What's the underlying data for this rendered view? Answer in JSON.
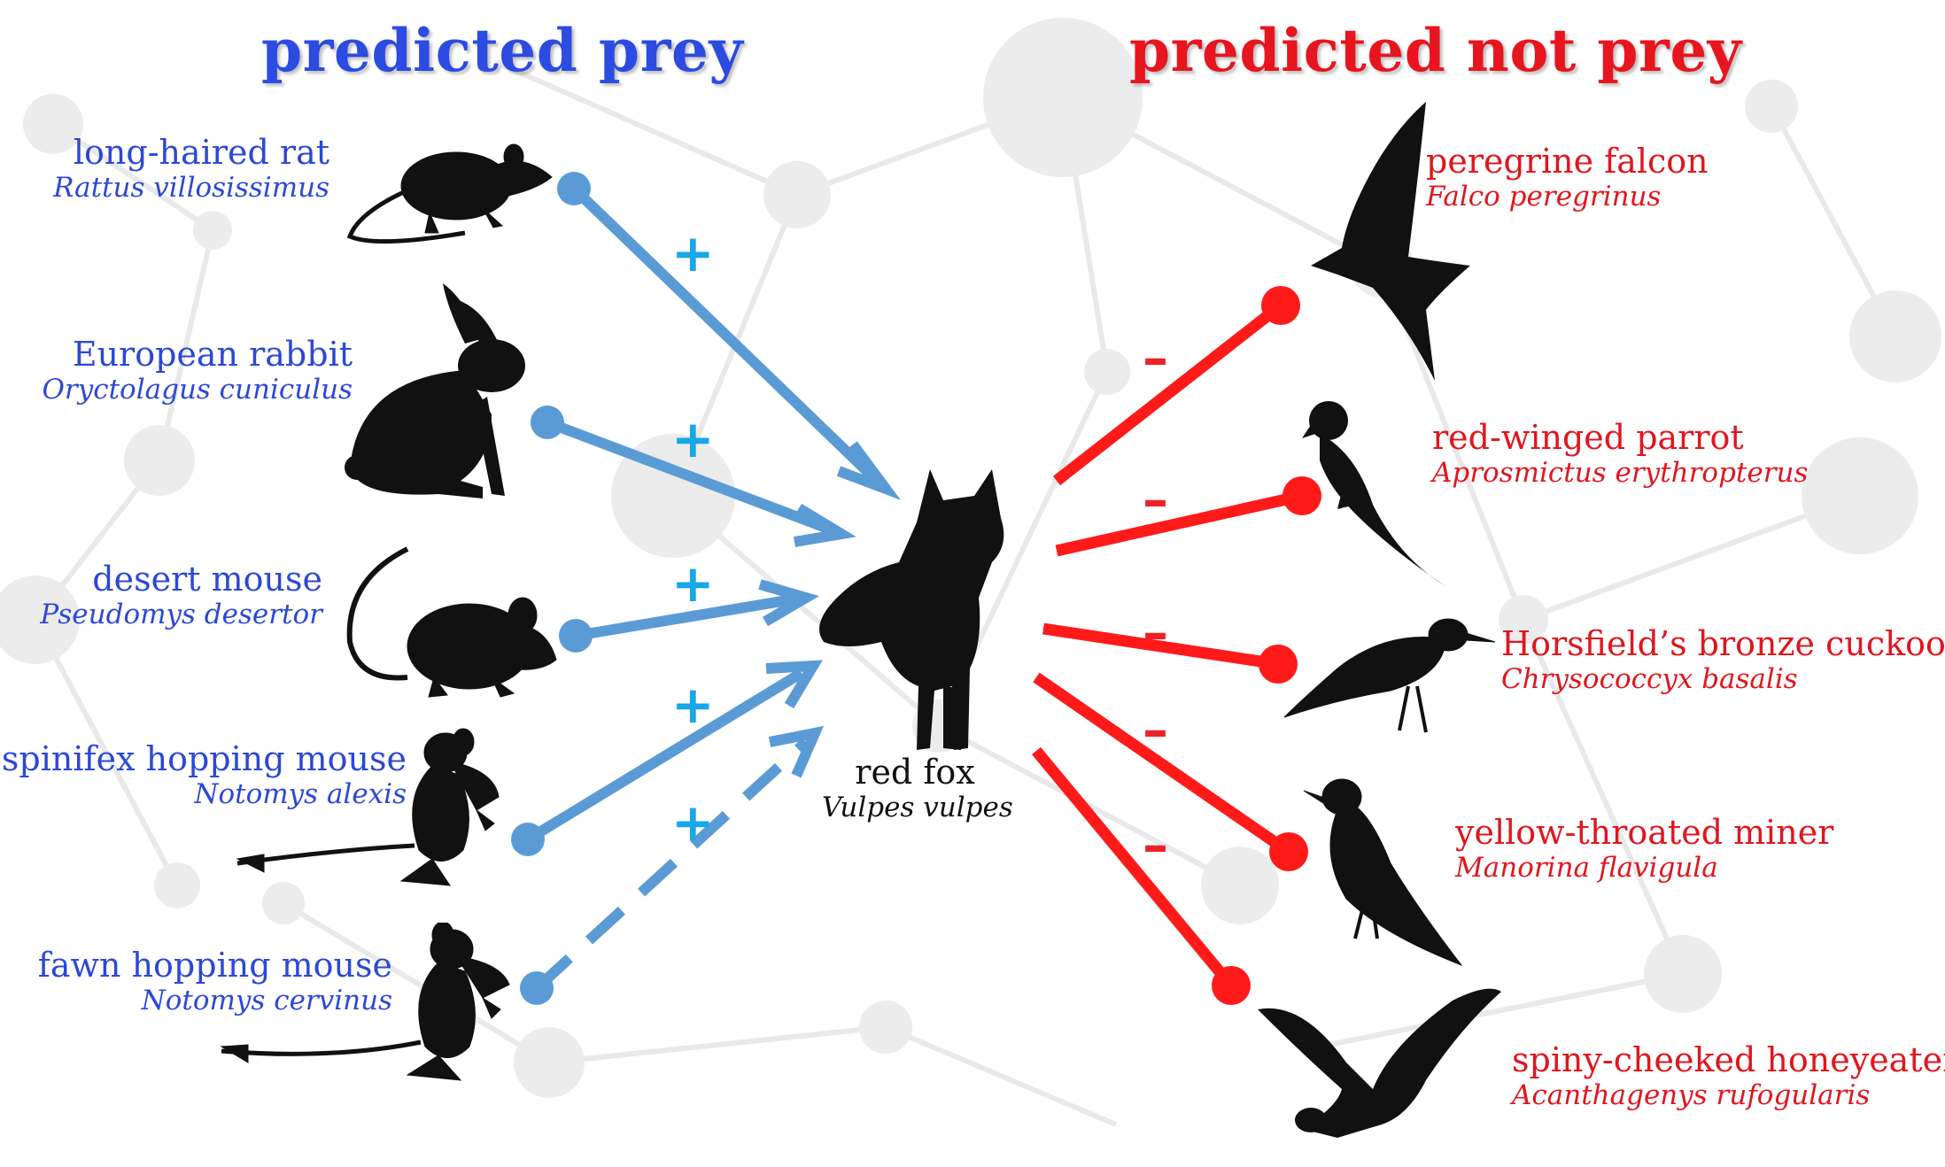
{
  "headings": {
    "prey": "predicted prey",
    "not_prey": "predicted not prey"
  },
  "predator": {
    "common": "red fox",
    "scientific": "Vulpes vulpes"
  },
  "prey": [
    {
      "common": "long-haired rat",
      "scientific": "Rattus villosissimus",
      "icon": "rat-icon",
      "link": "solid",
      "sign": "+"
    },
    {
      "common": "European rabbit",
      "scientific": "Oryctolagus cuniculus",
      "icon": "rabbit-icon",
      "link": "solid",
      "sign": "+"
    },
    {
      "common": "desert mouse",
      "scientific": "Pseudomys desertor",
      "icon": "mouse-icon",
      "link": "solid",
      "sign": "+"
    },
    {
      "common": "spinifex hopping mouse",
      "scientific": "Notomys alexis",
      "icon": "hopping-mouse-icon",
      "link": "solid",
      "sign": "+"
    },
    {
      "common": "fawn hopping mouse",
      "scientific": "Notomys cervinus",
      "icon": "hopping-mouse-icon",
      "link": "dashed",
      "sign": "+"
    }
  ],
  "not_prey": [
    {
      "common": "peregrine falcon",
      "scientific": "Falco peregrinus",
      "icon": "falcon-icon",
      "sign": "–"
    },
    {
      "common": "red-winged parrot",
      "scientific": "Aprosmictus erythropterus",
      "icon": "parrot-icon",
      "sign": "–"
    },
    {
      "common": "Horsfield’s bronze cuckoo",
      "scientific": "Chrysococcyx basalis",
      "icon": "cuckoo-icon",
      "sign": "–"
    },
    {
      "common": "yellow-throated miner",
      "scientific": "Manorina flavigula",
      "icon": "miner-icon",
      "sign": "–"
    },
    {
      "common": "spiny-cheeked honeyeater",
      "scientific": "Acanthagenys rufogularis",
      "icon": "honeyeater-icon",
      "sign": "–"
    }
  ],
  "colors": {
    "prey_heading": "#2b4be2",
    "not_prey_heading": "#e8141e",
    "prey_arrow": "#5b9bd5",
    "not_prey_link": "#ff1a1a",
    "plus_sign": "#16a8e8",
    "minus_sign": "#f02028",
    "silhouette": "#111111"
  }
}
